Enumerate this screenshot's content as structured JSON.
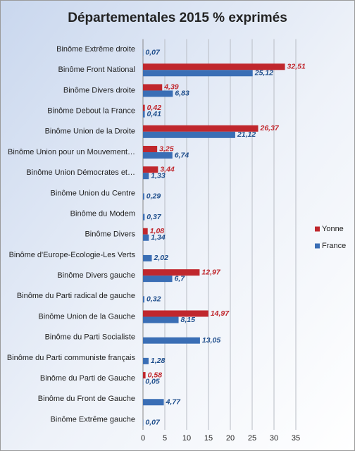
{
  "chart_data": {
    "type": "hbar",
    "title": "Départementales 2015 % exprimés",
    "categories": [
      "Binôme Extrême droite",
      "Binôme Front National",
      "Binôme Divers droite",
      "Binôme Debout la France",
      "Binôme Union de la Droite",
      "Binôme Union pour un Mouvement…",
      "Binôme Union Démocrates et…",
      "Binôme Union du Centre",
      "Binôme du Modem",
      "Binôme Divers",
      "Binôme d'Europe-Ecologie-Les Verts",
      "Binôme Divers gauche",
      "Binôme du Parti radical de gauche",
      "Binôme Union de la Gauche",
      "Binôme du Parti Socialiste",
      "Binôme du Parti communiste  français",
      "Binôme du Parti de Gauche",
      "Binôme du Front de Gauche",
      "Binôme Extrême gauche"
    ],
    "series": [
      {
        "name": "Yonne",
        "color": "#c0272d",
        "label_color": "#c0272d",
        "values": [
          null,
          32.51,
          4.39,
          0.42,
          26.37,
          3.25,
          3.44,
          null,
          null,
          1.08,
          null,
          12.97,
          null,
          14.97,
          null,
          null,
          0.58,
          null,
          null
        ],
        "value_labels": [
          null,
          "32,51",
          "4,39",
          "0,42",
          "26,37",
          "3,25",
          "3,44",
          null,
          null,
          "1,08",
          null,
          "12,97",
          null,
          "14,97",
          null,
          null,
          "0,58",
          null,
          null
        ]
      },
      {
        "name": "France",
        "color": "#3a6eb5",
        "label_color": "#1f4e8c",
        "values": [
          0.07,
          25.12,
          6.83,
          0.41,
          21.12,
          6.74,
          1.33,
          0.29,
          0.37,
          1.34,
          2.02,
          6.7,
          0.32,
          8.15,
          13.05,
          1.28,
          0.05,
          4.77,
          0.07
        ],
        "value_labels": [
          "0,07",
          "25,12",
          "6,83",
          "0,41",
          "21,12",
          "6,74",
          "1,33",
          "0,29",
          "0,37",
          "1,34",
          "2,02",
          "6,7",
          "0,32",
          "8,15",
          "13,05",
          "1,28",
          "0,05",
          "4,77",
          "0,07"
        ]
      }
    ],
    "xlim": [
      0,
      35
    ],
    "xticks": [
      0,
      5,
      10,
      15,
      20,
      25,
      30,
      35
    ],
    "grid": true,
    "legend": "right"
  }
}
